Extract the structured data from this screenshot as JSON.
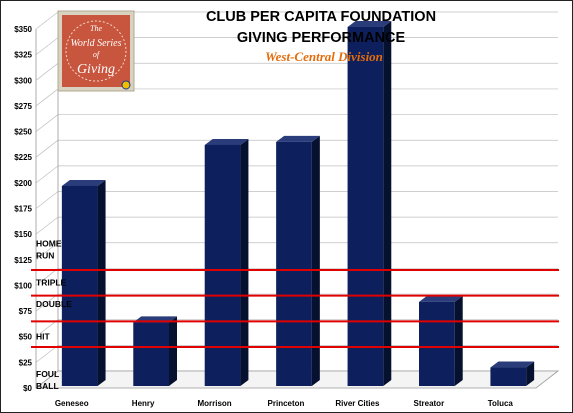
{
  "title": "CLUB PER CAPITA FOUNDATION",
  "subtitle_line": "GIVING PERFORMANCE",
  "division": "West-Central Division",
  "logo": {
    "line1": "The",
    "line2": "World Series",
    "line3": "of",
    "line4": "Giving",
    "bg_color": "#c8553d"
  },
  "colors": {
    "bar": "#0d1f5c",
    "bar_side": "#06112f",
    "bar_top": "#2a3c7a",
    "threshold_line": "#e00000",
    "division_text": "#e46c0a"
  },
  "chart_data": {
    "type": "bar",
    "categories": [
      "Geneseo",
      "Henry",
      "Morrison",
      "Princeton",
      "River Cities",
      "Streator",
      "Toluca"
    ],
    "values": [
      195,
      62,
      235,
      238,
      350,
      82,
      18
    ],
    "ylim": [
      0,
      350
    ],
    "yticks": [
      "$0",
      "$25",
      "$50",
      "$75",
      "$100",
      "$125",
      "$150",
      "$175",
      "$200",
      "$225",
      "$250",
      "$275",
      "$300",
      "$325",
      "$350"
    ],
    "grid": true,
    "levels": [
      {
        "label": [
          "FOUL",
          "BALL"
        ],
        "line_value": null,
        "label_value": 8
      },
      {
        "label": [
          "HIT"
        ],
        "line_value": 40,
        "label_value": 50
      },
      {
        "label": [
          "DOUBLE"
        ],
        "line_value": 65,
        "label_value": 82
      },
      {
        "label": [
          "TRIPLE"
        ],
        "line_value": 90,
        "label_value": 103
      },
      {
        "label": [
          "HOME",
          "RUN"
        ],
        "line_value": 115,
        "label_value": 135
      }
    ]
  }
}
